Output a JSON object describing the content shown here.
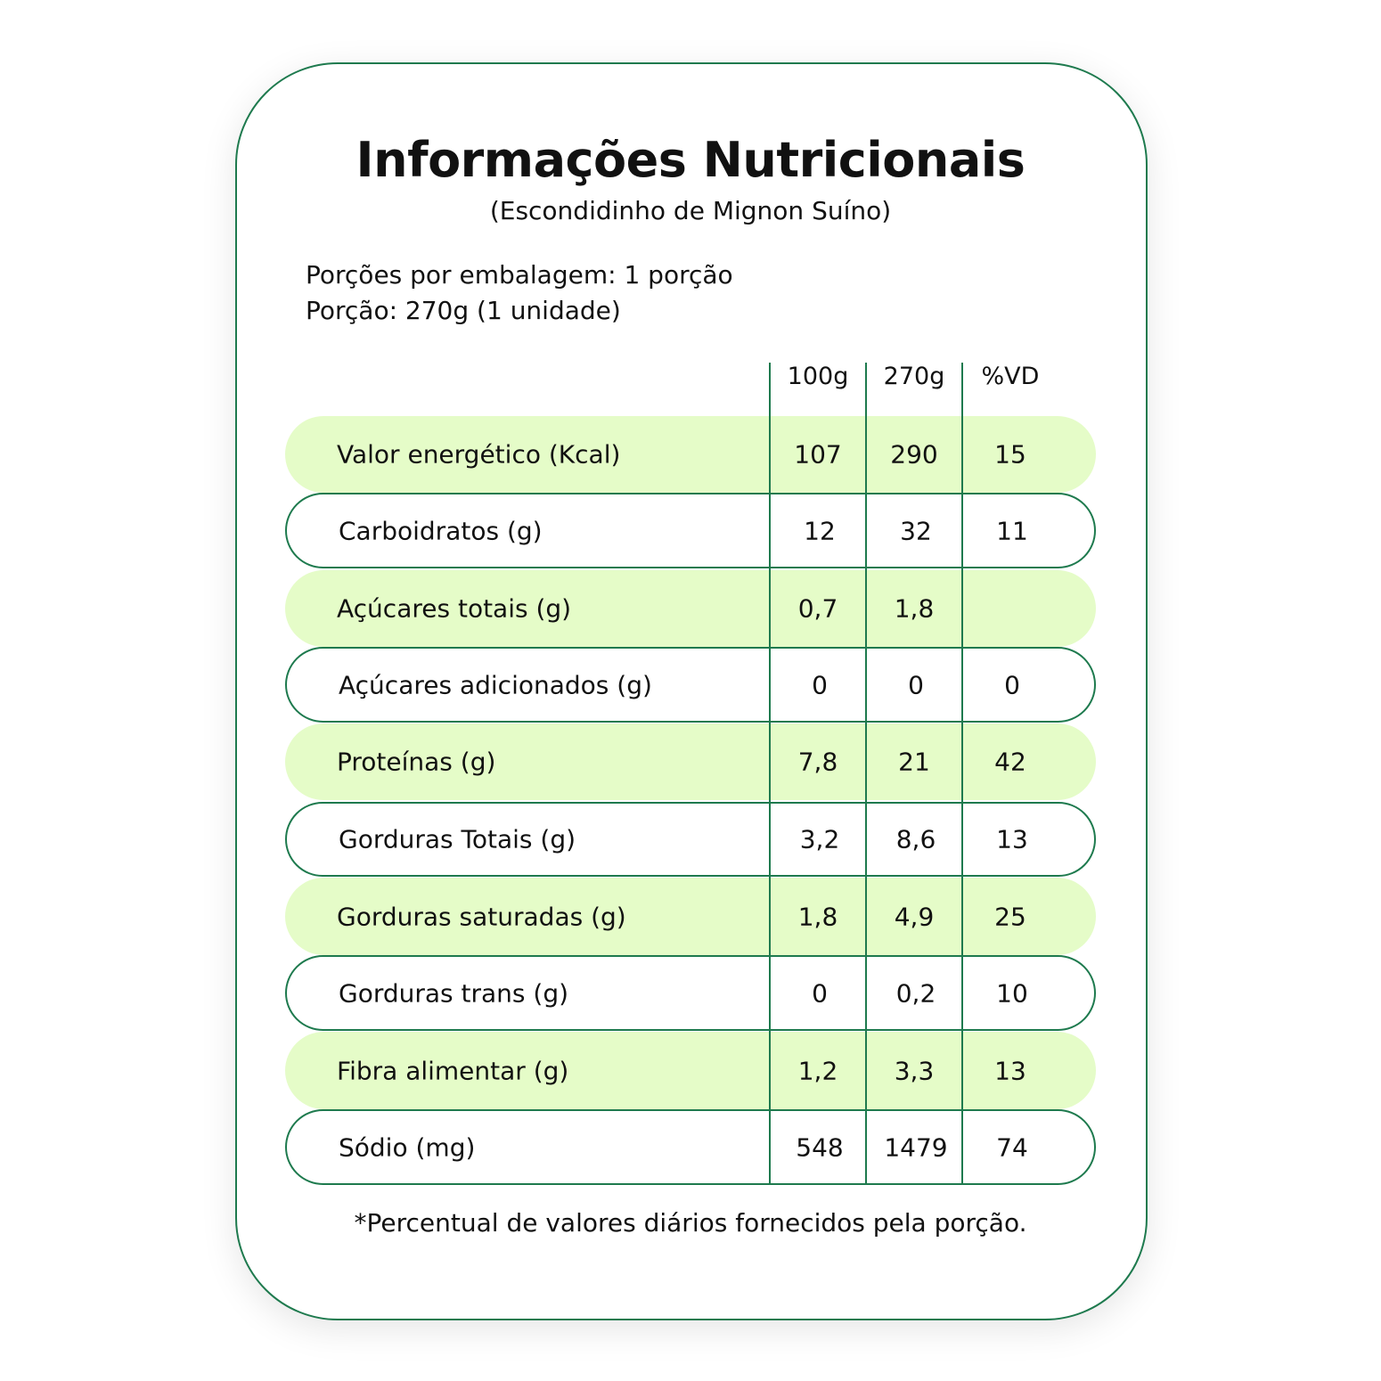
{
  "title": "Informações Nutricionais",
  "subtitle": "(Escondidinho de Mignon Suíno)",
  "portions_per_package": "Porções por embalagem: 1 porção",
  "portion": "Porção: 270g (1 unidade)",
  "colors": {
    "accent": "#1e7a4e",
    "row_fill": "#e5fcc8"
  },
  "table": {
    "headers": [
      "100g",
      "270g",
      "%VD"
    ],
    "rows": [
      {
        "label": "Valor energético (Kcal)",
        "v100": "107",
        "v270": "290",
        "vd": "15"
      },
      {
        "label": "Carboidratos (g)",
        "v100": "12",
        "v270": "32",
        "vd": "11"
      },
      {
        "label": "Açúcares totais (g)",
        "v100": "0,7",
        "v270": "1,8",
        "vd": ""
      },
      {
        "label": "Açúcares adicionados (g)",
        "v100": "0",
        "v270": "0",
        "vd": "0"
      },
      {
        "label": "Proteínas (g)",
        "v100": "7,8",
        "v270": "21",
        "vd": "42"
      },
      {
        "label": "Gorduras Totais (g)",
        "v100": "3,2",
        "v270": "8,6",
        "vd": "13"
      },
      {
        "label": "Gorduras saturadas (g)",
        "v100": "1,8",
        "v270": "4,9",
        "vd": "25"
      },
      {
        "label": "Gorduras trans (g)",
        "v100": "0",
        "v270": "0,2",
        "vd": "10"
      },
      {
        "label": "Fibra alimentar (g)",
        "v100": "1,2",
        "v270": "3,3",
        "vd": "13"
      },
      {
        "label": "Sódio (mg)",
        "v100": "548",
        "v270": "1479",
        "vd": "74"
      }
    ]
  },
  "footnote": "*Percentual de valores diários fornecidos pela porção."
}
